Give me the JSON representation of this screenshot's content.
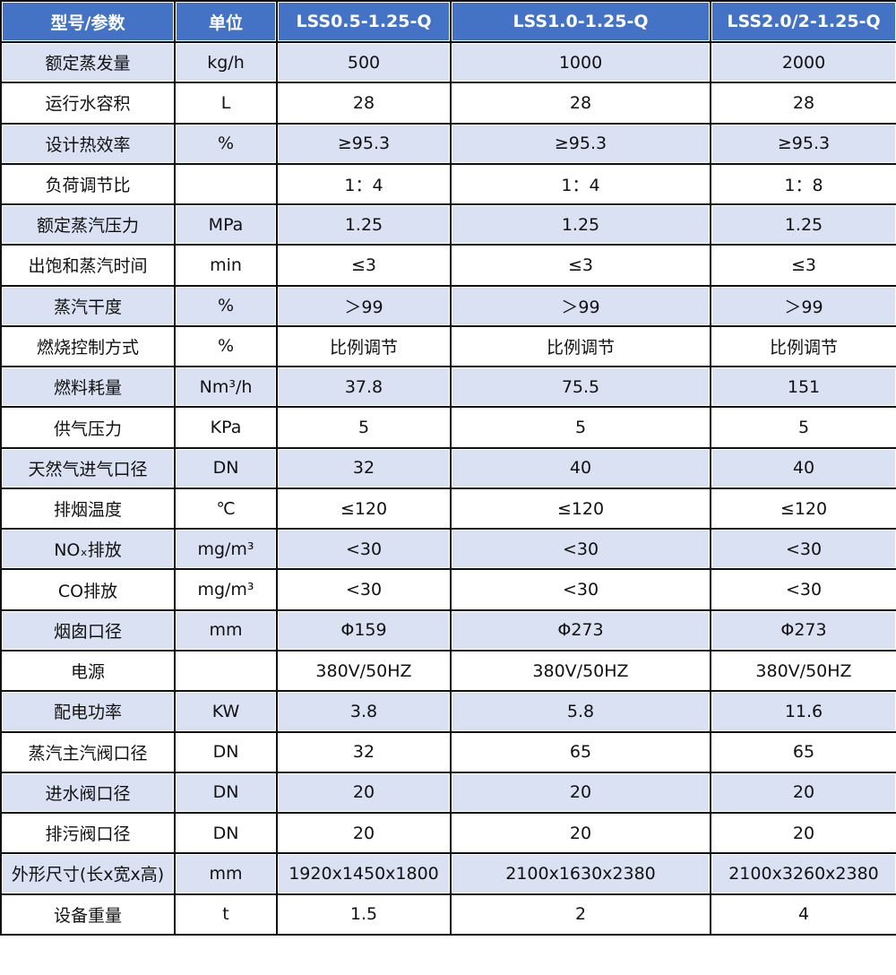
{
  "colors": {
    "header": "#4472C4",
    "stripe": "#D9E1F2",
    "border": "#111111"
  },
  "headers": [
    "型号/参数",
    "单位",
    "LSS0.5-1.25-Q",
    "LSS1.0-1.25-Q",
    "LSS2.0/2-1.25-Q"
  ],
  "rows": [
    [
      "额定蒸发量",
      "kg/h",
      "500",
      "1000",
      "2000"
    ],
    [
      "运行水容积",
      "L",
      "28",
      "28",
      "28"
    ],
    [
      "设计热效率",
      "%",
      "≥95.3",
      "≥95.3",
      "≥95.3"
    ],
    [
      "负荷调节比",
      "",
      "1：4",
      "1：4",
      "1：8"
    ],
    [
      "额定蒸汽压力",
      "MPa",
      "1.25",
      "1.25",
      "1.25"
    ],
    [
      "出饱和蒸汽时间",
      "min",
      "≤3",
      "≤3",
      "≤3"
    ],
    [
      "蒸汽干度",
      "%",
      "＞99",
      "＞99",
      "＞99"
    ],
    [
      "燃烧控制方式",
      "%",
      "比例调节",
      "比例调节",
      "比例调节"
    ],
    [
      "燃料耗量",
      "Nm³/h",
      "37.8",
      "75.5",
      "151"
    ],
    [
      "供气压力",
      "KPa",
      "5",
      "5",
      "5"
    ],
    [
      "天然气进气口径",
      "DN",
      "32",
      "40",
      "40"
    ],
    [
      "排烟温度",
      "℃",
      "≤120",
      "≤120",
      "≤120"
    ],
    [
      "NOₓ排放",
      "mg/m³",
      "<30",
      "<30",
      "<30"
    ],
    [
      "CO排放",
      "mg/m³",
      "<30",
      "<30",
      "<30"
    ],
    [
      "烟囱口径",
      "mm",
      "Φ159",
      "Φ273",
      "Φ273"
    ],
    [
      "电源",
      "",
      "380V/50HZ",
      "380V/50HZ",
      "380V/50HZ"
    ],
    [
      "配电功率",
      "KW",
      "3.8",
      "5.8",
      "11.6"
    ],
    [
      "蒸汽主汽阀口径",
      "DN",
      "32",
      "65",
      "65"
    ],
    [
      "进水阀口径",
      "DN",
      "20",
      "20",
      "20"
    ],
    [
      "排污阀口径",
      "DN",
      "20",
      "20",
      "20"
    ],
    [
      "外形尺寸(长x宽x高)",
      "mm",
      "1920x1450x1800",
      "2100x1630x2380",
      "2100x3260x2380"
    ],
    [
      "设备重量",
      "t",
      "1.5",
      "2",
      "4"
    ]
  ]
}
